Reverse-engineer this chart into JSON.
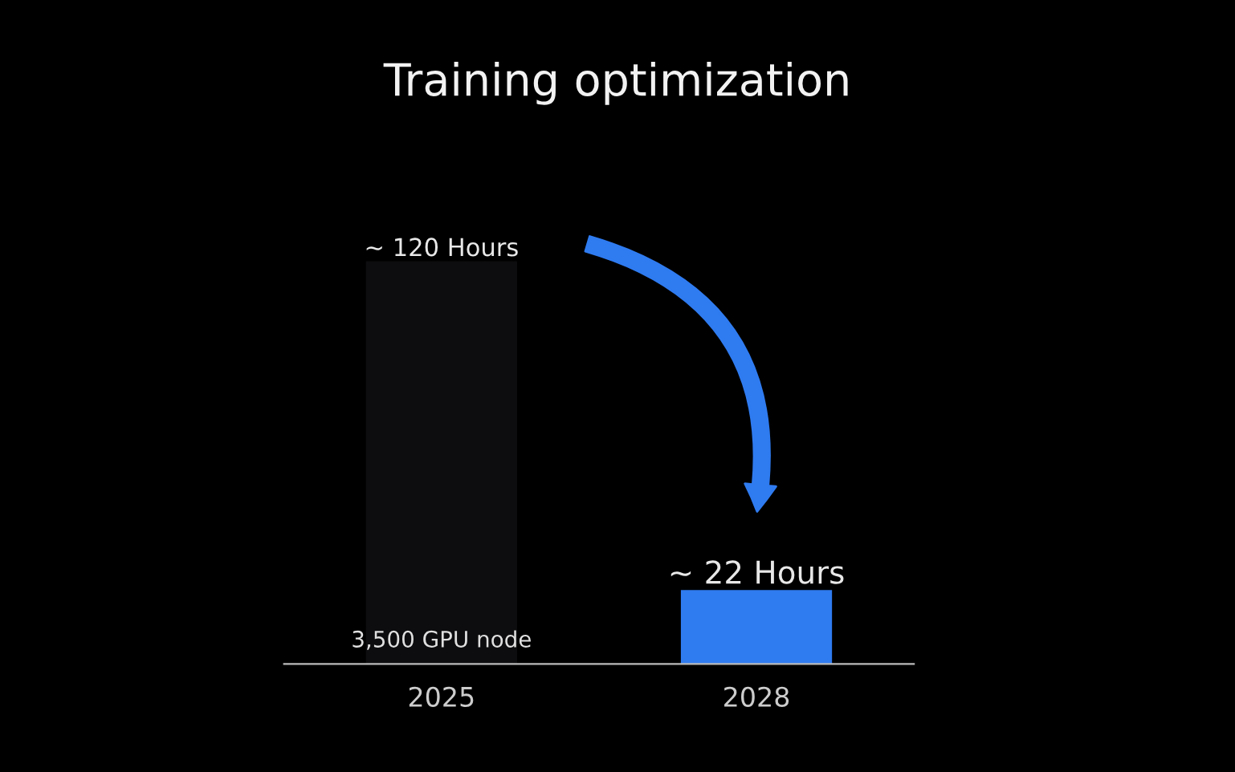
{
  "chart_data": {
    "type": "bar",
    "title": "Training optimization",
    "categories": [
      "2025",
      "2028"
    ],
    "values": [
      120,
      22
    ],
    "colors": [
      "#0d0d0f",
      "#2f7bf0"
    ],
    "value_labels": [
      "~ 120 Hours",
      "~ 22 Hours"
    ],
    "annotations": [
      "3,500 GPU node"
    ],
    "grid": false,
    "legend": false
  }
}
